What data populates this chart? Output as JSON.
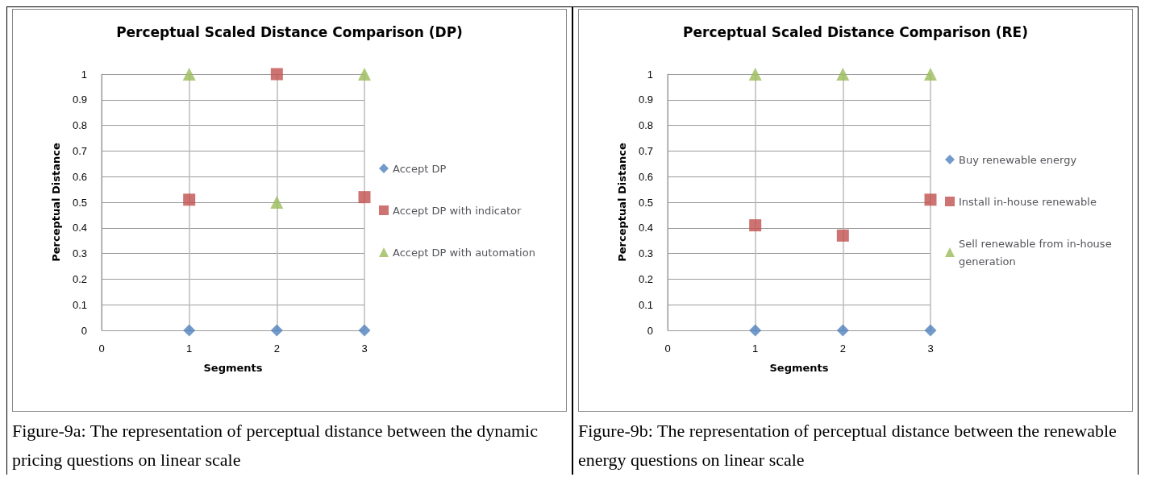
{
  "chart_data": [
    {
      "type": "scatter",
      "title": "Perceptual Scaled Distance Comparison (DP)",
      "xlabel": "Segments",
      "ylabel": "Perceptual Distance",
      "x": [
        1,
        2,
        3
      ],
      "xlim": [
        0,
        3
      ],
      "xticks": [
        0,
        1,
        2,
        3
      ],
      "ylim": [
        0,
        1
      ],
      "yticks": [
        0,
        0.1,
        0.2,
        0.3,
        0.4,
        0.5,
        0.6,
        0.7,
        0.8,
        0.9,
        1
      ],
      "grid": true,
      "legend": "right",
      "series": [
        {
          "name": "Accept DP",
          "color": "#4f81bd",
          "marker": "diamond",
          "values": [
            0,
            0,
            0
          ]
        },
        {
          "name": "Accept DP with indicator",
          "color": "#c0504d",
          "marker": "square",
          "values": [
            0.51,
            1,
            0.52
          ]
        },
        {
          "name": "Accept DP with automation",
          "color": "#9bbb59",
          "marker": "triangle",
          "values": [
            1,
            0.5,
            1
          ]
        }
      ],
      "annotations": [
        "Figure-9a: The representation of perceptual distance between the dynamic pricing questions on linear scale"
      ]
    },
    {
      "type": "scatter",
      "title": "Perceptual Scaled Distance Comparison (RE)",
      "xlabel": "Segments",
      "ylabel": "Perceptual Distance",
      "x": [
        1,
        2,
        3
      ],
      "xlim": [
        0,
        3
      ],
      "xticks": [
        0,
        1,
        2,
        3
      ],
      "ylim": [
        0,
        1
      ],
      "yticks": [
        0,
        0.1,
        0.2,
        0.3,
        0.4,
        0.5,
        0.6,
        0.7,
        0.8,
        0.9,
        1
      ],
      "grid": true,
      "legend": "right",
      "series": [
        {
          "name": "Buy renewable energy",
          "color": "#4f81bd",
          "marker": "diamond",
          "values": [
            0,
            0,
            0
          ]
        },
        {
          "name": "Install in-house renewable",
          "color": "#c0504d",
          "marker": "square",
          "values": [
            0.41,
            0.37,
            0.51
          ]
        },
        {
          "name": "Sell renewable from in-house generation",
          "color": "#9bbb59",
          "marker": "triangle",
          "values": [
            1,
            1,
            1
          ]
        }
      ],
      "annotations": [
        "Figure-9b: The representation of perceptual distance between the renewable energy questions on linear scale"
      ]
    }
  ]
}
